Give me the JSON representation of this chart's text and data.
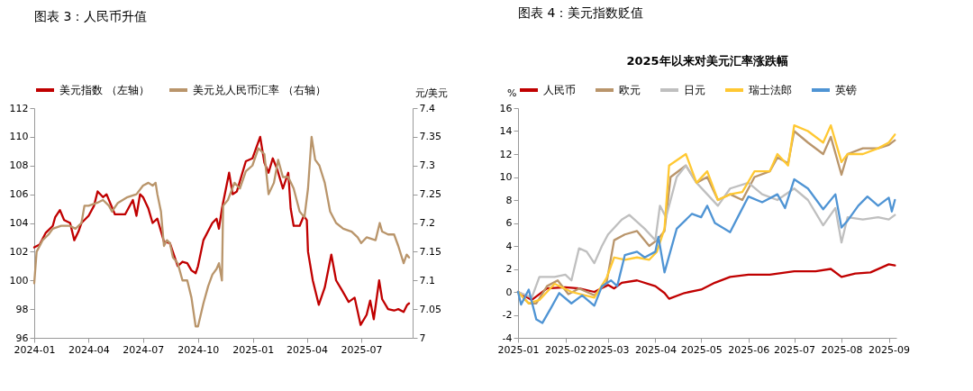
{
  "chart_data": [
    {
      "type": "line",
      "title": "图表 3：人民币升值",
      "y2label": "元/美元",
      "legend": "top",
      "xlim": [
        "2024-01-01",
        "2025-09-25"
      ],
      "xticks": [
        "2024-01",
        "2024-04",
        "2024-07",
        "2024-10",
        "2025-01",
        "2025-04",
        "2025-07"
      ],
      "ylim": [
        96,
        112
      ],
      "yticks": [
        96,
        98,
        100,
        102,
        104,
        106,
        108,
        110,
        112
      ],
      "y2lim": [
        7,
        7.4
      ],
      "y2ticks": [
        7,
        7.05,
        7.1,
        7.15,
        7.2,
        7.25,
        7.3,
        7.35,
        7.4
      ],
      "series": [
        {
          "name": "美元指数 （左轴）",
          "color": "#c00000",
          "x": [
            "2024-01-01",
            "2024-01-10",
            "2024-01-20",
            "2024-02-01",
            "2024-02-05",
            "2024-02-13",
            "2024-02-20",
            "2024-03-01",
            "2024-03-08",
            "2024-03-15",
            "2024-03-20",
            "2024-04-01",
            "2024-04-10",
            "2024-04-16",
            "2024-04-25",
            "2024-05-01",
            "2024-05-15",
            "2024-06-01",
            "2024-06-14",
            "2024-06-20",
            "2024-06-26",
            "2024-07-01",
            "2024-07-10",
            "2024-07-17",
            "2024-07-25",
            "2024-08-05",
            "2024-08-15",
            "2024-08-28",
            "2024-09-05",
            "2024-09-13",
            "2024-09-20",
            "2024-09-27",
            "2024-10-01",
            "2024-10-10",
            "2024-10-25",
            "2024-11-01",
            "2024-11-05",
            "2024-11-10",
            "2024-11-22",
            "2024-11-28",
            "2024-12-05",
            "2024-12-20",
            "2024-12-31",
            "2025-01-13",
            "2025-01-20",
            "2025-01-27",
            "2025-02-03",
            "2025-02-10",
            "2025-02-20",
            "2025-03-01",
            "2025-03-05",
            "2025-03-10",
            "2025-03-20",
            "2025-03-27",
            "2025-04-01",
            "2025-04-03",
            "2025-04-11",
            "2025-04-21",
            "2025-05-01",
            "2025-05-12",
            "2025-05-20",
            "2025-05-30",
            "2025-06-10",
            "2025-06-20",
            "2025-06-30",
            "2025-07-10",
            "2025-07-16",
            "2025-07-22",
            "2025-07-31",
            "2025-08-05",
            "2025-08-15",
            "2025-08-25",
            "2025-09-01",
            "2025-09-10",
            "2025-09-16",
            "2025-09-19"
          ],
          "values": [
            102.3,
            102.5,
            103.3,
            103.8,
            104.4,
            104.9,
            104.2,
            104.0,
            102.8,
            103.4,
            104.0,
            104.5,
            105.2,
            106.2,
            105.8,
            106.0,
            104.6,
            104.6,
            105.6,
            104.5,
            106.0,
            105.8,
            105.0,
            104.0,
            104.3,
            102.7,
            102.6,
            101.0,
            101.3,
            101.2,
            100.7,
            100.5,
            101.0,
            102.8,
            104.0,
            104.3,
            103.6,
            105.0,
            107.5,
            106.0,
            106.2,
            108.3,
            108.5,
            110.0,
            108.2,
            107.5,
            108.5,
            107.8,
            106.4,
            107.5,
            105.0,
            103.8,
            103.8,
            104.5,
            104.2,
            102.0,
            100.0,
            98.3,
            99.5,
            101.8,
            100.0,
            99.3,
            98.5,
            98.8,
            96.9,
            97.6,
            98.6,
            97.3,
            100.0,
            98.7,
            98.0,
            97.9,
            98.0,
            97.8,
            98.3,
            98.4
          ]
        },
        {
          "name": "美元兑人民币汇率 （右轴）",
          "color": "#b9956b",
          "axis": "y2",
          "x": [
            "2024-01-01",
            "2024-01-05",
            "2024-01-15",
            "2024-01-25",
            "2024-02-01",
            "2024-02-15",
            "2024-03-01",
            "2024-03-10",
            "2024-03-20",
            "2024-03-25",
            "2024-04-01",
            "2024-04-15",
            "2024-04-25",
            "2024-05-05",
            "2024-05-10",
            "2024-05-20",
            "2024-06-05",
            "2024-06-20",
            "2024-07-01",
            "2024-07-10",
            "2024-07-17",
            "2024-07-22",
            "2024-07-25",
            "2024-07-31",
            "2024-08-05",
            "2024-08-10",
            "2024-08-15",
            "2024-08-20",
            "2024-08-28",
            "2024-09-05",
            "2024-09-13",
            "2024-09-20",
            "2024-09-27",
            "2024-10-01",
            "2024-10-10",
            "2024-10-18",
            "2024-10-25",
            "2024-11-01",
            "2024-11-05",
            "2024-11-10",
            "2024-11-12",
            "2024-11-20",
            "2024-12-01",
            "2024-12-10",
            "2024-12-20",
            "2024-12-31",
            "2025-01-10",
            "2025-01-20",
            "2025-01-27",
            "2025-02-05",
            "2025-02-12",
            "2025-02-20",
            "2025-03-01",
            "2025-03-10",
            "2025-03-20",
            "2025-03-28",
            "2025-04-03",
            "2025-04-09",
            "2025-04-15",
            "2025-04-22",
            "2025-05-01",
            "2025-05-10",
            "2025-05-20",
            "2025-06-01",
            "2025-06-15",
            "2025-06-25",
            "2025-07-01",
            "2025-07-10",
            "2025-07-25",
            "2025-08-01",
            "2025-08-05",
            "2025-08-15",
            "2025-08-25",
            "2025-09-01",
            "2025-09-10",
            "2025-09-15",
            "2025-09-19"
          ],
          "values": [
            7.095,
            7.15,
            7.17,
            7.18,
            7.19,
            7.195,
            7.195,
            7.19,
            7.2,
            7.23,
            7.23,
            7.235,
            7.24,
            7.23,
            7.22,
            7.235,
            7.245,
            7.25,
            7.265,
            7.27,
            7.265,
            7.27,
            7.25,
            7.22,
            7.16,
            7.17,
            7.165,
            7.14,
            7.13,
            7.1,
            7.1,
            7.07,
            7.02,
            7.02,
            7.06,
            7.09,
            7.11,
            7.12,
            7.13,
            7.1,
            7.23,
            7.24,
            7.27,
            7.26,
            7.29,
            7.3,
            7.33,
            7.32,
            7.25,
            7.27,
            7.31,
            7.28,
            7.28,
            7.26,
            7.22,
            7.21,
            7.26,
            7.35,
            7.31,
            7.3,
            7.27,
            7.22,
            7.2,
            7.19,
            7.185,
            7.175,
            7.165,
            7.175,
            7.17,
            7.2,
            7.185,
            7.18,
            7.18,
            7.16,
            7.13,
            7.145,
            7.14
          ]
        }
      ]
    },
    {
      "type": "line",
      "title": "图表 4：美元指数贬值",
      "subtitle": "2025年以来对美元汇率涨跌幅",
      "ylabel": "%",
      "legend": "top",
      "xlim": [
        "2025-01-01",
        "2025-09-06"
      ],
      "xticks": [
        "2025-01",
        "2025-02",
        "2025-03",
        "2025-04",
        "2025-05",
        "2025-06",
        "2025-07",
        "2025-08",
        "2025-09"
      ],
      "ylim": [
        -4,
        16
      ],
      "yticks": [
        -4,
        -2,
        0,
        2,
        4,
        6,
        8,
        10,
        12,
        14,
        16
      ],
      "series": [
        {
          "name": "人民币",
          "color": "#c00000",
          "x": [
            "2025-01-01",
            "2025-01-10",
            "2025-01-20",
            "2025-02-01",
            "2025-02-10",
            "2025-02-20",
            "2025-03-01",
            "2025-03-05",
            "2025-03-10",
            "2025-03-20",
            "2025-04-01",
            "2025-04-07",
            "2025-04-10",
            "2025-04-20",
            "2025-05-01",
            "2025-05-10",
            "2025-05-20",
            "2025-06-01",
            "2025-06-15",
            "2025-07-01",
            "2025-07-15",
            "2025-07-25",
            "2025-08-01",
            "2025-08-10",
            "2025-08-20",
            "2025-09-01",
            "2025-09-05"
          ],
          "values": [
            0,
            -0.7,
            0.3,
            0.4,
            0.3,
            0.0,
            0.6,
            0.3,
            0.8,
            1.0,
            0.5,
            -0.1,
            -0.6,
            -0.1,
            0.2,
            0.8,
            1.3,
            1.5,
            1.5,
            1.8,
            1.8,
            2.0,
            1.3,
            1.6,
            1.7,
            2.4,
            2.3
          ]
        },
        {
          "name": "欧元",
          "color": "#b9956b",
          "x": [
            "2025-01-01",
            "2025-01-08",
            "2025-01-13",
            "2025-01-20",
            "2025-01-27",
            "2025-02-03",
            "2025-02-10",
            "2025-02-20",
            "2025-02-28",
            "2025-03-05",
            "2025-03-12",
            "2025-03-20",
            "2025-03-28",
            "2025-04-02",
            "2025-04-07",
            "2025-04-11",
            "2025-04-21",
            "2025-04-28",
            "2025-05-05",
            "2025-05-12",
            "2025-05-20",
            "2025-05-28",
            "2025-06-05",
            "2025-06-15",
            "2025-06-20",
            "2025-06-27",
            "2025-07-01",
            "2025-07-10",
            "2025-07-20",
            "2025-07-25",
            "2025-08-01",
            "2025-08-05",
            "2025-08-15",
            "2025-08-25",
            "2025-09-01",
            "2025-09-05"
          ],
          "values": [
            0,
            -1.0,
            -1.0,
            0.5,
            1.0,
            -0.2,
            0.3,
            -0.3,
            0.8,
            4.5,
            5.0,
            5.3,
            4.0,
            4.5,
            5.3,
            10.0,
            11.0,
            9.5,
            10.0,
            8.0,
            8.5,
            8.0,
            10.0,
            10.5,
            11.7,
            11.2,
            14.0,
            13.0,
            12.0,
            13.5,
            10.2,
            12.0,
            12.5,
            12.5,
            12.8,
            13.2
          ]
        },
        {
          "name": "日元",
          "color": "#bfbfbf",
          "x": [
            "2025-01-01",
            "2025-01-10",
            "2025-01-15",
            "2025-01-25",
            "2025-02-01",
            "2025-02-05",
            "2025-02-10",
            "2025-02-15",
            "2025-02-20",
            "2025-02-25",
            "2025-03-01",
            "2025-03-10",
            "2025-03-15",
            "2025-03-25",
            "2025-04-01",
            "2025-04-04",
            "2025-04-08",
            "2025-04-15",
            "2025-04-21",
            "2025-04-28",
            "2025-05-05",
            "2025-05-12",
            "2025-05-20",
            "2025-06-01",
            "2025-06-10",
            "2025-06-20",
            "2025-07-01",
            "2025-07-10",
            "2025-07-20",
            "2025-07-28",
            "2025-08-01",
            "2025-08-05",
            "2025-08-15",
            "2025-08-25",
            "2025-09-01",
            "2025-09-05"
          ],
          "values": [
            0,
            -0.5,
            1.3,
            1.3,
            1.5,
            1.0,
            3.8,
            3.5,
            2.5,
            4.0,
            5.0,
            6.3,
            6.7,
            5.5,
            4.5,
            7.5,
            6.5,
            10.0,
            11.0,
            9.5,
            8.5,
            7.5,
            9.0,
            9.5,
            8.5,
            8.0,
            9.0,
            8.0,
            5.8,
            7.3,
            4.3,
            6.5,
            6.3,
            6.5,
            6.3,
            6.7
          ]
        },
        {
          "name": "瑞士法郎",
          "color": "#ffc832",
          "x": [
            "2025-01-01",
            "2025-01-08",
            "2025-01-15",
            "2025-01-25",
            "2025-02-05",
            "2025-02-20",
            "2025-02-28",
            "2025-03-05",
            "2025-03-12",
            "2025-03-20",
            "2025-03-28",
            "2025-04-02",
            "2025-04-07",
            "2025-04-10",
            "2025-04-21",
            "2025-04-28",
            "2025-05-05",
            "2025-05-12",
            "2025-05-20",
            "2025-05-28",
            "2025-06-05",
            "2025-06-15",
            "2025-06-20",
            "2025-06-27",
            "2025-07-01",
            "2025-07-10",
            "2025-07-20",
            "2025-07-25",
            "2025-08-01",
            "2025-08-05",
            "2025-08-15",
            "2025-08-25",
            "2025-09-01",
            "2025-09-05"
          ],
          "values": [
            0,
            -1.0,
            -0.7,
            0.7,
            0.0,
            -0.5,
            1.2,
            3.0,
            2.8,
            3.0,
            2.8,
            3.5,
            5.5,
            11.0,
            12.0,
            9.5,
            10.5,
            8.0,
            8.5,
            8.7,
            10.5,
            10.5,
            12.0,
            11.0,
            14.5,
            14.0,
            13.0,
            14.5,
            11.3,
            12.0,
            12.0,
            12.5,
            13.0,
            13.7
          ]
        },
        {
          "name": "英镑",
          "color": "#4f94d4",
          "x": [
            "2025-01-01",
            "2025-01-03",
            "2025-01-08",
            "2025-01-13",
            "2025-01-17",
            "2025-01-23",
            "2025-01-28",
            "2025-02-05",
            "2025-02-12",
            "2025-02-20",
            "2025-02-25",
            "2025-03-03",
            "2025-03-07",
            "2025-03-12",
            "2025-03-20",
            "2025-03-25",
            "2025-04-01",
            "2025-04-03",
            "2025-04-07",
            "2025-04-15",
            "2025-04-25",
            "2025-05-01",
            "2025-05-05",
            "2025-05-10",
            "2025-05-20",
            "2025-05-25",
            "2025-06-01",
            "2025-06-10",
            "2025-06-20",
            "2025-06-25",
            "2025-07-01",
            "2025-07-10",
            "2025-07-20",
            "2025-07-28",
            "2025-08-01",
            "2025-08-05",
            "2025-08-12",
            "2025-08-18",
            "2025-08-25",
            "2025-09-01",
            "2025-09-03",
            "2025-09-05"
          ],
          "values": [
            0,
            -1.1,
            0.2,
            -2.4,
            -2.7,
            -1.3,
            -0.1,
            -1.0,
            -0.3,
            -1.2,
            0.5,
            1.0,
            0.5,
            3.2,
            3.5,
            3.0,
            3.5,
            4.8,
            1.7,
            5.5,
            6.8,
            6.5,
            7.5,
            6.0,
            5.2,
            6.5,
            8.3,
            7.8,
            8.5,
            7.3,
            9.8,
            9.0,
            7.2,
            8.5,
            5.6,
            6.2,
            7.5,
            8.3,
            7.5,
            8.2,
            7.0,
            8.0
          ]
        }
      ]
    }
  ]
}
